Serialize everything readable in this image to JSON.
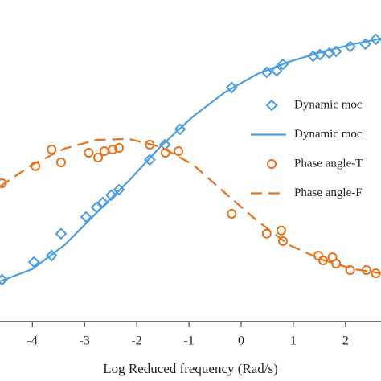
{
  "chart_data": {
    "type": "scatter",
    "xlabel": "Log Reduced frequency (Rad/s)",
    "xlim": [
      -4.62,
      2.68
    ],
    "xticks": [
      -4,
      -3,
      -2,
      -1,
      0,
      1,
      2
    ],
    "ylim": [
      0,
      100
    ],
    "series": [
      {
        "name": "Dynamic moc",
        "kind": "markers",
        "marker": "diamond",
        "color": "#4a9de0",
        "x": [
          -4.58,
          -3.97,
          -3.63,
          -3.45,
          -2.97,
          -2.77,
          -2.65,
          -2.49,
          -2.34,
          -1.75,
          -1.46,
          -1.17,
          -0.18,
          0.49,
          0.68,
          0.8,
          1.38,
          1.51,
          1.69,
          1.82,
          2.09,
          2.38,
          2.58
        ],
        "values": [
          13,
          18.5,
          20.5,
          27.3,
          32.5,
          35.5,
          37,
          39.3,
          41,
          50.3,
          55,
          59.8,
          72.8,
          77.5,
          78,
          80,
          82.5,
          83,
          83.5,
          84,
          85.5,
          86.3,
          87.8
        ]
      },
      {
        "name": "Dynamic moc",
        "kind": "line",
        "dash": false,
        "color": "#4a9de0",
        "x": [
          -4.62,
          -4,
          -3.38,
          -2.77,
          -2.15,
          -1.54,
          -0.92,
          -0.31,
          0.31,
          0.92,
          1.54,
          2.15,
          2.68
        ],
        "values": [
          12.5,
          16.3,
          23.8,
          33.8,
          43.8,
          54.5,
          63.8,
          71.3,
          77,
          80.8,
          83.8,
          86.3,
          88
        ]
      },
      {
        "name": "Phase angle-T",
        "kind": "markers",
        "marker": "circle",
        "color": "#e8711c",
        "x": [
          -4.58,
          -3.94,
          -3.63,
          -3.45,
          -2.92,
          -2.74,
          -2.62,
          -2.46,
          -2.34,
          -1.75,
          -1.45,
          -1.2,
          -0.18,
          0.49,
          0.77,
          0.8,
          1.48,
          1.57,
          1.75,
          1.82,
          2.09,
          2.4,
          2.58
        ],
        "values": [
          43,
          48.3,
          53.5,
          49.5,
          52.5,
          51,
          53,
          53.5,
          54,
          55,
          52.5,
          53,
          33.5,
          27.3,
          28.3,
          25,
          20.5,
          19,
          20,
          18,
          16,
          16,
          15
        ]
      },
      {
        "name": "Phase angle-F",
        "kind": "line",
        "dash": true,
        "color": "#e8711c",
        "x": [
          -4.62,
          -4,
          -3.38,
          -2.77,
          -2.15,
          -1.54,
          -0.92,
          -0.31,
          0.31,
          0.92,
          1.54,
          2.15,
          2.68
        ],
        "values": [
          42,
          48.8,
          53.8,
          56.5,
          56.8,
          54.3,
          48.8,
          40,
          31.3,
          23.8,
          19.3,
          16.3,
          15
        ]
      }
    ]
  }
}
